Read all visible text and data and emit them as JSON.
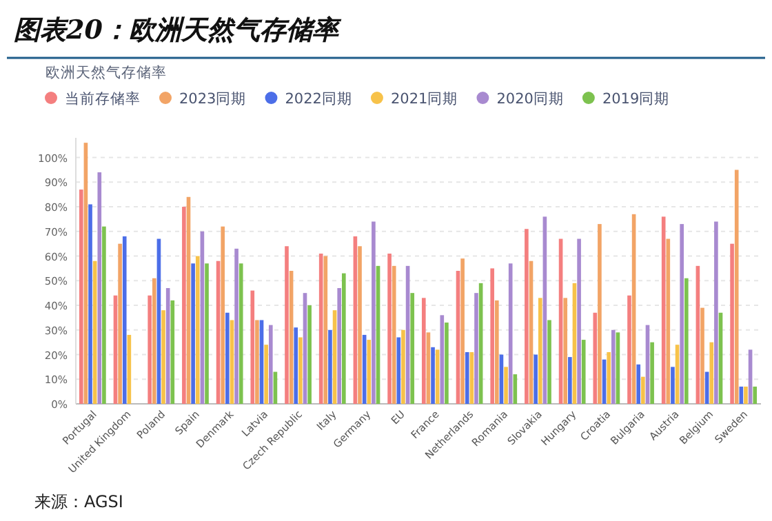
{
  "chart_data": {
    "type": "bar",
    "title": "图表20：欧洲天然气存储率",
    "subtitle": "欧洲天然气存储率",
    "categories": [
      "Portugal",
      "United Kingdom",
      "Poland",
      "Spain",
      "Denmark",
      "Latvia",
      "Czech Republic",
      "Italy",
      "Germany",
      "EU",
      "France",
      "Netherlands",
      "Romania",
      "Slovakia",
      "Hungary",
      "Croatia",
      "Bulgaria",
      "Austria",
      "Belgium",
      "Sweden"
    ],
    "series": [
      {
        "name": "当前存储率",
        "color": "#f47f7f",
        "values": [
          87,
          44,
          44,
          80,
          58,
          46,
          64,
          61,
          68,
          61,
          43,
          54,
          55,
          71,
          67,
          37,
          44,
          76,
          56,
          65
        ]
      },
      {
        "name": "2023同期",
        "color": "#f2a466",
        "values": [
          106,
          65,
          51,
          84,
          72,
          34,
          54,
          60,
          64,
          56,
          29,
          59,
          42,
          58,
          43,
          73,
          77,
          67,
          39,
          95
        ]
      },
      {
        "name": "2022同期",
        "color": "#4c6ee8",
        "values": [
          81,
          68,
          67,
          57,
          37,
          34,
          31,
          30,
          28,
          27,
          23,
          21,
          20,
          20,
          19,
          18,
          16,
          15,
          13,
          7
        ]
      },
      {
        "name": "2021同期",
        "color": "#f7c24a",
        "values": [
          58,
          28,
          38,
          60,
          34,
          24,
          27,
          38,
          26,
          30,
          22,
          21,
          15,
          43,
          49,
          21,
          11,
          24,
          25,
          7
        ]
      },
      {
        "name": "2020同期",
        "color": "#a88ad0",
        "values": [
          94,
          null,
          47,
          70,
          63,
          32,
          45,
          47,
          74,
          56,
          36,
          45,
          57,
          76,
          67,
          30,
          32,
          73,
          74,
          22
        ]
      },
      {
        "name": "2019同期",
        "color": "#7dc24f",
        "values": [
          72,
          null,
          42,
          57,
          57,
          13,
          40,
          53,
          56,
          45,
          33,
          49,
          12,
          34,
          26,
          29,
          25,
          51,
          37,
          7
        ]
      }
    ],
    "ylim": [
      0,
      108
    ],
    "yticks": [
      {
        "value": 0,
        "label": "0%"
      },
      {
        "value": 10,
        "label": "10%"
      },
      {
        "value": 20,
        "label": "20%"
      },
      {
        "value": 30,
        "label": "30%"
      },
      {
        "value": 40,
        "label": "40%"
      },
      {
        "value": 50,
        "label": "50%"
      },
      {
        "value": 60,
        "label": "60%"
      },
      {
        "value": 70,
        "label": "70%"
      },
      {
        "value": 80,
        "label": "80%"
      },
      {
        "value": 90,
        "label": "90%"
      },
      {
        "value": 100,
        "label": "100%"
      }
    ],
    "grid": "y",
    "legend": "top",
    "annotations": [
      "来源：AGSI"
    ]
  }
}
